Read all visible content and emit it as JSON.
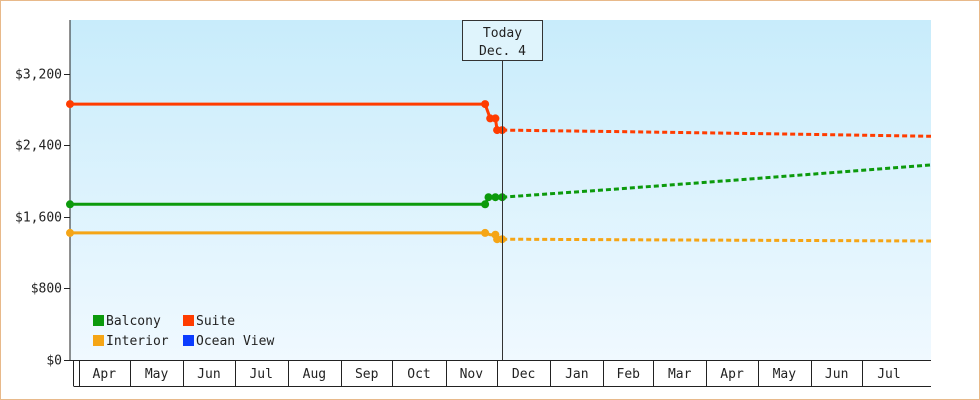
{
  "chart_data": {
    "type": "line",
    "title": "",
    "xlabel": "",
    "ylabel": "",
    "ylim": [
      0,
      3800
    ],
    "yticks": [
      0,
      800,
      1600,
      2400,
      3200
    ],
    "ytick_labels": [
      "$0",
      "$800",
      "$1,600",
      "$2,400",
      "$3,200"
    ],
    "xlim": [
      "2023-03-27",
      "2024-08-10"
    ],
    "month_labels": [
      {
        "label": "Apr",
        "start": "2023-04-01",
        "end": "2023-05-01"
      },
      {
        "label": "May",
        "start": "2023-05-01",
        "end": "2023-06-01"
      },
      {
        "label": "Jun",
        "start": "2023-06-01",
        "end": "2023-07-01"
      },
      {
        "label": "Jul",
        "start": "2023-07-01",
        "end": "2023-08-01"
      },
      {
        "label": "Aug",
        "start": "2023-08-01",
        "end": "2023-09-01"
      },
      {
        "label": "Sep",
        "start": "2023-09-01",
        "end": "2023-10-01"
      },
      {
        "label": "Oct",
        "start": "2023-10-01",
        "end": "2023-11-01"
      },
      {
        "label": "Nov",
        "start": "2023-11-01",
        "end": "2023-12-01"
      },
      {
        "label": "Dec",
        "start": "2023-12-01",
        "end": "2024-01-01"
      },
      {
        "label": "Jan",
        "start": "2024-01-01",
        "end": "2024-02-01"
      },
      {
        "label": "Feb",
        "start": "2024-02-01",
        "end": "2024-03-01"
      },
      {
        "label": "Mar",
        "start": "2024-03-01",
        "end": "2024-04-01"
      },
      {
        "label": "Apr",
        "start": "2024-04-01",
        "end": "2024-05-01"
      },
      {
        "label": "May",
        "start": "2024-05-01",
        "end": "2024-06-01"
      },
      {
        "label": "Jun",
        "start": "2024-06-01",
        "end": "2024-07-01"
      },
      {
        "label": "Jul",
        "start": "2024-07-01",
        "end": "2024-08-01"
      }
    ],
    "today": {
      "line1": "Today",
      "line2": "Dec. 4",
      "date": "2023-12-04"
    },
    "legend": {
      "placement": "bottom-left"
    },
    "series": [
      {
        "name": "Suite",
        "color": "#ff3c00",
        "history": [
          [
            "2023-03-27",
            2860
          ],
          [
            "2023-11-24",
            2860
          ],
          [
            "2023-11-27",
            2700
          ],
          [
            "2023-11-30",
            2700
          ],
          [
            "2023-12-01",
            2570
          ],
          [
            "2023-12-04",
            2570
          ]
        ],
        "markers": [
          [
            "2023-03-27",
            2860
          ],
          [
            "2023-11-24",
            2860
          ],
          [
            "2023-11-27",
            2700
          ],
          [
            "2023-11-30",
            2700
          ],
          [
            "2023-12-01",
            2570
          ],
          [
            "2023-12-04",
            2570
          ]
        ],
        "forecast": [
          [
            "2023-12-04",
            2570
          ],
          [
            "2024-02-01",
            2555
          ],
          [
            "2024-05-01",
            2530
          ],
          [
            "2024-08-10",
            2500
          ]
        ]
      },
      {
        "name": "Balcony",
        "color": "#0c9a0c",
        "history": [
          [
            "2023-03-27",
            1740
          ],
          [
            "2023-11-24",
            1740
          ],
          [
            "2023-11-26",
            1820
          ],
          [
            "2023-12-04",
            1820
          ]
        ],
        "markers": [
          [
            "2023-03-27",
            1740
          ],
          [
            "2023-11-24",
            1740
          ],
          [
            "2023-11-26",
            1820
          ],
          [
            "2023-11-30",
            1820
          ],
          [
            "2023-12-04",
            1820
          ]
        ],
        "forecast": [
          [
            "2023-12-04",
            1820
          ],
          [
            "2024-02-01",
            1900
          ],
          [
            "2024-05-01",
            2030
          ],
          [
            "2024-08-10",
            2180
          ]
        ]
      },
      {
        "name": "Interior",
        "color": "#f5a516",
        "history": [
          [
            "2023-03-27",
            1420
          ],
          [
            "2023-11-24",
            1420
          ],
          [
            "2023-11-27",
            1400
          ],
          [
            "2023-11-30",
            1400
          ],
          [
            "2023-12-01",
            1350
          ],
          [
            "2023-12-04",
            1350
          ]
        ],
        "markers": [
          [
            "2023-03-27",
            1420
          ],
          [
            "2023-11-24",
            1420
          ],
          [
            "2023-11-30",
            1400
          ],
          [
            "2023-12-01",
            1350
          ],
          [
            "2023-12-04",
            1350
          ]
        ],
        "forecast": [
          [
            "2023-12-04",
            1350
          ],
          [
            "2024-04-01",
            1340
          ],
          [
            "2024-08-10",
            1330
          ]
        ]
      },
      {
        "name": "Ocean View",
        "color": "#0b3cff",
        "history": [],
        "markers": [],
        "forecast": []
      }
    ]
  }
}
